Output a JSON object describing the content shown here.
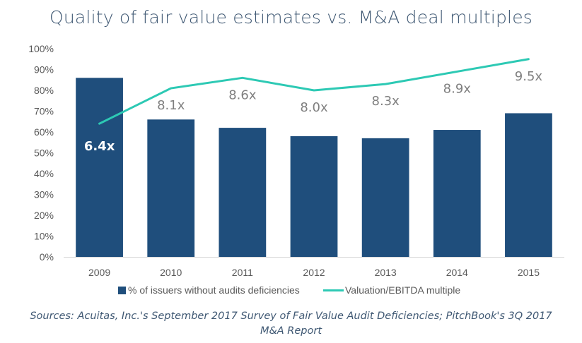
{
  "title": "Quality of fair value estimates vs. M&A deal multiples",
  "source": {
    "line1": "Sources: Acuitas, Inc.'s September 2017 Survey of Fair Value Audit Deficiencies; PitchBook's 3Q 2017",
    "line2": "M&A Report"
  },
  "colors": {
    "bar": "#1f4e7c",
    "line": "#2dc9b4",
    "label_light": "#ffffff",
    "label_dark": "#7f7f7f",
    "axis_text": "#595959"
  },
  "chart_data": {
    "type": "bar",
    "categories": [
      "2009",
      "2010",
      "2011",
      "2012",
      "2013",
      "2014",
      "2015"
    ],
    "ylim": [
      0,
      100
    ],
    "yticks": [
      "0%",
      "10%",
      "20%",
      "30%",
      "40%",
      "50%",
      "60%",
      "70%",
      "80%",
      "90%",
      "100%"
    ],
    "grid": false,
    "legend_position": "bottom",
    "series": [
      {
        "name": "% of issuers without audits deficiencies",
        "type": "bar",
        "values": [
          86,
          66,
          62,
          58,
          57,
          61,
          69
        ]
      },
      {
        "name": "Valuation/EBITDA multiple",
        "type": "line",
        "values": [
          64,
          81,
          86,
          80,
          83,
          89,
          95
        ],
        "data_labels": [
          "6.4x",
          "8.1x",
          "8.6x",
          "8.0x",
          "8.3x",
          "8.9x",
          "9.5x"
        ]
      }
    ]
  }
}
